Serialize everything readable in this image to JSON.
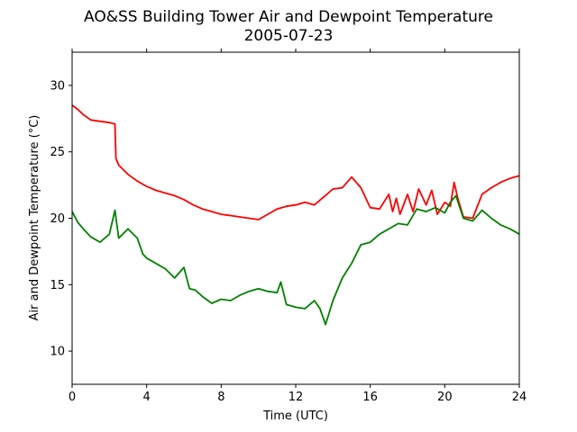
{
  "chart_data": {
    "type": "line",
    "title": "AO&SS Building Tower Air and Dewpoint Temperature",
    "subtitle": "2005-07-23",
    "xlabel": "Time (UTC)",
    "ylabel": "Air and Dewpoint Temperature (°C)",
    "xlim": [
      0,
      24
    ],
    "ylim": [
      7.5,
      32.5
    ],
    "xticks": [
      0,
      4,
      8,
      12,
      16,
      20,
      24
    ],
    "yticks": [
      10,
      15,
      20,
      25,
      30
    ],
    "grid": false,
    "series": [
      {
        "color": "#ff0000",
        "x": [
          0,
          0.3,
          0.6,
          1.0,
          1.5,
          2.0,
          2.3,
          2.35,
          2.5,
          3.0,
          3.5,
          4.0,
          4.5,
          5.0,
          5.5,
          6.0,
          6.5,
          7.0,
          7.5,
          8.0,
          8.5,
          9.0,
          9.5,
          10.0,
          10.5,
          11.0,
          11.5,
          12.0,
          12.5,
          13.0,
          13.5,
          14.0,
          14.5,
          15.0,
          15.5,
          16.0,
          16.5,
          17.0,
          17.2,
          17.4,
          17.6,
          18.0,
          18.3,
          18.6,
          19.0,
          19.3,
          19.6,
          20.0,
          20.3,
          20.5,
          20.7,
          21.0,
          21.5,
          22.0,
          22.5,
          23.0,
          23.5,
          24.0
        ],
        "y": [
          28.5,
          28.2,
          27.8,
          27.4,
          27.3,
          27.2,
          27.1,
          24.5,
          24.0,
          23.3,
          22.8,
          22.4,
          22.1,
          21.9,
          21.7,
          21.4,
          21.0,
          20.7,
          20.5,
          20.3,
          20.2,
          20.1,
          20.0,
          19.9,
          20.3,
          20.7,
          20.9,
          21.0,
          21.2,
          21.0,
          21.6,
          22.2,
          22.3,
          23.1,
          22.3,
          20.8,
          20.7,
          21.8,
          20.5,
          21.5,
          20.3,
          21.8,
          20.5,
          22.2,
          21.0,
          22.1,
          20.3,
          21.2,
          20.9,
          22.7,
          21.5,
          20.1,
          20.0,
          21.8,
          22.3,
          22.7,
          23.0,
          23.2
        ]
      },
      {
        "color": "#008000",
        "x": [
          0,
          0.3,
          0.6,
          1.0,
          1.5,
          2.0,
          2.3,
          2.5,
          3.0,
          3.5,
          3.8,
          4.0,
          4.5,
          5.0,
          5.5,
          6.0,
          6.3,
          6.6,
          7.0,
          7.5,
          8.0,
          8.5,
          9.0,
          9.5,
          10.0,
          10.5,
          11.0,
          11.2,
          11.5,
          12.0,
          12.5,
          13.0,
          13.3,
          13.6,
          14.0,
          14.5,
          15.0,
          15.5,
          16.0,
          16.5,
          17.0,
          17.5,
          18.0,
          18.5,
          19.0,
          19.5,
          20.0,
          20.3,
          20.6,
          21.0,
          21.5,
          22.0,
          22.5,
          23.0,
          23.5,
          24.0
        ],
        "y": [
          20.5,
          19.7,
          19.2,
          18.6,
          18.2,
          18.8,
          20.6,
          18.5,
          19.2,
          18.5,
          17.3,
          17.0,
          16.6,
          16.2,
          15.5,
          16.3,
          14.7,
          14.6,
          14.1,
          13.6,
          13.9,
          13.8,
          14.2,
          14.5,
          14.7,
          14.5,
          14.4,
          15.2,
          13.5,
          13.3,
          13.2,
          13.8,
          13.2,
          12.0,
          13.8,
          15.5,
          16.6,
          18.0,
          18.2,
          18.8,
          19.2,
          19.6,
          19.5,
          20.7,
          20.5,
          20.8,
          20.4,
          21.2,
          21.7,
          20.0,
          19.8,
          20.6,
          20.0,
          19.5,
          19.2,
          18.8
        ]
      }
    ]
  }
}
